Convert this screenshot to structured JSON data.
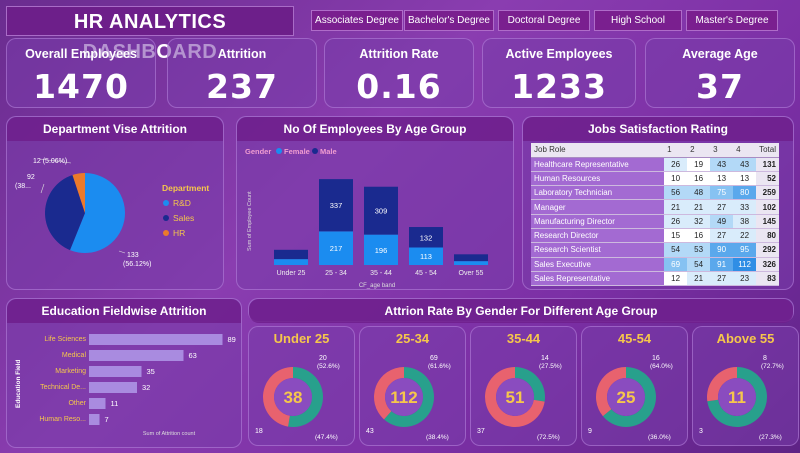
{
  "header": {
    "title": "HR ANALYTICS DASHBOARD",
    "filters": [
      "Associates Degree",
      "Bachelor's Degree",
      "Doctoral Degree",
      "High School",
      "Master's Degree"
    ]
  },
  "kpis": [
    {
      "label": "Overall Employees",
      "value": "1470"
    },
    {
      "label": "Attrition",
      "value": "237"
    },
    {
      "label": "Attrition Rate",
      "value": "0.16"
    },
    {
      "label": "Active Employees",
      "value": "1233"
    },
    {
      "label": "Average Age",
      "value": "37"
    }
  ],
  "colors": {
    "blue": "#1b8cf0",
    "navy": "#1a2a8f",
    "orange": "#ec7a2b",
    "teal": "#28a08c",
    "coral": "#e8626e",
    "gold": "#f6c74b",
    "bar_purple": "#a98be0"
  },
  "dept_chart": {
    "title": "Department Vise Attrition",
    "legend_title": "Department",
    "labels": {
      "hr": "12 (5.06%)",
      "sales_a": "92",
      "sales_b": "(38...",
      "rd_a": "133",
      "rd_b": "(56.12%)"
    }
  },
  "age_chart": {
    "title": "No Of Employees By Age Group",
    "legend_gender": "Gender",
    "legend_female": "Female",
    "legend_male": "Male",
    "ylabel": "Sum of Employee Count",
    "xlabel": "CF_age band"
  },
  "jobs_table": {
    "title": "Jobs Satisfaction Rating",
    "headers": [
      "Job Role",
      "1",
      "2",
      "3",
      "4",
      "Total"
    ],
    "rows": [
      [
        "Healthcare Representative",
        "26",
        "19",
        "43",
        "43",
        "131"
      ],
      [
        "Human Resources",
        "10",
        "16",
        "13",
        "13",
        "52"
      ],
      [
        "Laboratory Technician",
        "56",
        "48",
        "75",
        "80",
        "259"
      ],
      [
        "Manager",
        "21",
        "21",
        "27",
        "33",
        "102"
      ],
      [
        "Manufacturing Director",
        "26",
        "32",
        "49",
        "38",
        "145"
      ],
      [
        "Research Director",
        "15",
        "16",
        "27",
        "22",
        "80"
      ],
      [
        "Research Scientist",
        "54",
        "53",
        "90",
        "95",
        "292"
      ],
      [
        "Sales Executive",
        "69",
        "54",
        "91",
        "112",
        "326"
      ],
      [
        "Sales Representative",
        "12",
        "21",
        "27",
        "23",
        "83"
      ]
    ]
  },
  "education_chart": {
    "title": "Education Fieldwise Attrition",
    "ylabel": "Education Field",
    "xlabel": "Sum of Attrition count"
  },
  "gender_section": {
    "title": "Attrion Rate By Gender For Different Age Group",
    "groups": [
      {
        "title": "Under 25",
        "total": "38",
        "top_a": "20",
        "top_b": "(52.6%)",
        "bot_a": "18",
        "bot_b": "(47.4%)"
      },
      {
        "title": "25-34",
        "total": "112",
        "top_a": "69",
        "top_b": "(61.6%)",
        "bot_a": "43",
        "bot_b": "(38.4%)"
      },
      {
        "title": "35-44",
        "total": "51",
        "top_a": "14",
        "top_b": "(27.5%)",
        "bot_a": "37",
        "bot_b": "(72.5%)"
      },
      {
        "title": "45-54",
        "total": "25",
        "top_a": "16",
        "top_b": "(64.0%)",
        "bot_a": "9",
        "bot_b": "(36.0%)"
      },
      {
        "title": "Above 55",
        "total": "11",
        "top_a": "8",
        "top_b": "(72.7%)",
        "bot_a": "3",
        "bot_b": "(27.3%)"
      }
    ]
  },
  "chart_data": [
    {
      "type": "pie",
      "title": "Department Vise Attrition",
      "categories": [
        "R&D",
        "Sales",
        "HR"
      ],
      "values": [
        133,
        92,
        12
      ],
      "legend": "right"
    },
    {
      "type": "bar",
      "title": "No Of Employees By Age Group",
      "stacked": true,
      "categories": [
        "Under 25",
        "25 - 34",
        "35 - 44",
        "45 - 54",
        "Over 55"
      ],
      "series": [
        {
          "name": "Female",
          "values": [
            38,
            217,
            196,
            113,
            25
          ]
        },
        {
          "name": "Male",
          "values": [
            60,
            337,
            309,
            132,
            44
          ]
        }
      ],
      "xlabel": "CF_age band",
      "ylabel": "Sum of Employee Count",
      "legend": "top-left"
    },
    {
      "type": "bar",
      "orientation": "horizontal",
      "title": "Education Fieldwise Attrition",
      "categories": [
        "Life Sciences",
        "Medical",
        "Marketing",
        "Technical De...",
        "Other",
        "Human Reso..."
      ],
      "values": [
        89,
        63,
        35,
        32,
        11,
        7
      ],
      "xlabel": "Sum of Attrition count",
      "ylabel": "Education Field",
      "xlim": [
        0,
        100
      ]
    },
    {
      "type": "pie",
      "title": "Attrion Rate By Gender For Different Age Group",
      "categories": [
        "Under 25",
        "25-34",
        "35-44",
        "45-54",
        "Above 55"
      ],
      "series": [
        {
          "values": [
            20,
            69,
            14,
            16,
            8
          ]
        },
        {
          "values": [
            18,
            43,
            37,
            9,
            3
          ]
        }
      ]
    }
  ]
}
